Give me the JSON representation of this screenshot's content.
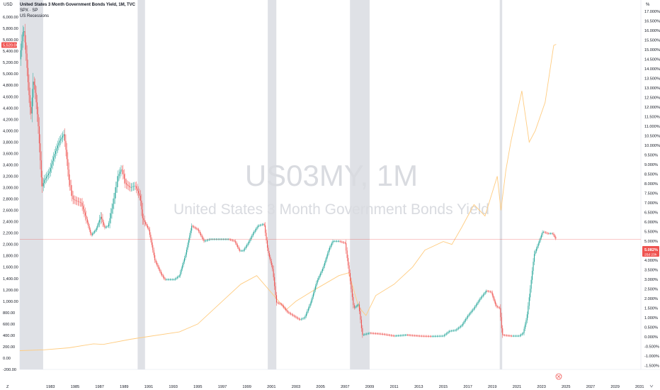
{
  "colors": {
    "up": "#26a69a",
    "down": "#ef5350",
    "spx": "#ffcc80",
    "recession": "#d1d4dc",
    "price_line": "#ef5350",
    "watermark": "#d9dbe0"
  },
  "legend": {
    "title": "United States 3 Month Government Bonds Yield, 1M, TVC",
    "spx": "SPX · SP",
    "recessions": "US Recessions"
  },
  "watermark": {
    "symbol": "US03MY, 1M",
    "name": "United States 3 Month Government Bonds Yield"
  },
  "left_axis_unit": "USD",
  "right_axis_unit": "%",
  "spx_last_label": "5,520.06",
  "yield_last_label": "5.082%",
  "yield_countdown": "25d 23h",
  "corner_label": "Z",
  "chart_data": {
    "type": "line",
    "x_range": [
      1981.0,
      2031.6
    ],
    "x_ticks": [
      "1983",
      "1985",
      "1987",
      "1989",
      "1991",
      "1993",
      "1995",
      "1997",
      "1999",
      "2001",
      "2003",
      "2005",
      "2007",
      "2009",
      "2011",
      "2013",
      "2015",
      "2017",
      "2019",
      "2021",
      "2023",
      "2025",
      "2027",
      "2029",
      "2031"
    ],
    "left_axis": {
      "unit": "USD",
      "range": [
        -200,
        6200
      ],
      "ticks": [
        "-200.00",
        "0.00",
        "200.00",
        "400.00",
        "600.00",
        "800.00",
        "1,000.00",
        "1,200.00",
        "1,400.00",
        "1,600.00",
        "1,800.00",
        "2,000.00",
        "2,200.00",
        "2,400.00",
        "2,600.00",
        "2,800.00",
        "3,000.00",
        "3,200.00",
        "3,400.00",
        "3,600.00",
        "3,800.00",
        "4,000.00",
        "4,200.00",
        "4,400.00",
        "4,600.00",
        "4,800.00",
        "5,000.00",
        "5,200.00",
        "5,400.00",
        "5,600.00",
        "5,800.00",
        "6,000.00"
      ]
    },
    "right_axis": {
      "unit": "%",
      "range": [
        -1.7,
        17.3
      ],
      "ticks": [
        "-1.500%",
        "-1.000%",
        "-0.500%",
        "0.000%",
        "0.500%",
        "1.000%",
        "1.500%",
        "2.000%",
        "2.500%",
        "3.000%",
        "3.500%",
        "4.000%",
        "4.500%",
        "5.000%",
        "5.500%",
        "6.000%",
        "6.500%",
        "7.000%",
        "7.500%",
        "8.000%",
        "8.500%",
        "9.000%",
        "9.500%",
        "10.000%",
        "10.500%",
        "11.000%",
        "11.500%",
        "12.000%",
        "12.500%",
        "13.000%",
        "13.500%",
        "14.000%",
        "14.500%",
        "15.000%",
        "15.500%",
        "16.000%",
        "16.500%",
        "17.000%"
      ]
    },
    "recessions": [
      [
        1981.0,
        1982.9
      ],
      [
        1990.6,
        1991.2
      ],
      [
        2001.2,
        2001.9
      ],
      [
        2007.9,
        2009.5
      ],
      [
        2020.1,
        2020.3
      ]
    ],
    "series": [
      {
        "name": "United States 3 Month Government Bonds Yield",
        "style": "candles",
        "values": [
          [
            1981.0,
            14.5
          ],
          [
            1981.3,
            16.2
          ],
          [
            1981.5,
            14.8
          ],
          [
            1981.7,
            13.0
          ],
          [
            1981.9,
            11.5
          ],
          [
            1982.1,
            13.5
          ],
          [
            1982.3,
            12.5
          ],
          [
            1982.5,
            11.0
          ],
          [
            1982.8,
            7.8
          ],
          [
            1983.0,
            8.2
          ],
          [
            1983.4,
            8.6
          ],
          [
            1983.8,
            9.5
          ],
          [
            1984.2,
            10.2
          ],
          [
            1984.6,
            10.6
          ],
          [
            1984.8,
            9.5
          ],
          [
            1985.0,
            8.2
          ],
          [
            1985.3,
            7.2
          ],
          [
            1985.6,
            7.1
          ],
          [
            1986.0,
            7.0
          ],
          [
            1986.4,
            6.2
          ],
          [
            1986.8,
            5.3
          ],
          [
            1987.2,
            5.6
          ],
          [
            1987.6,
            6.3
          ],
          [
            1987.9,
            5.7
          ],
          [
            1988.2,
            5.8
          ],
          [
            1988.6,
            7.0
          ],
          [
            1989.0,
            8.4
          ],
          [
            1989.3,
            8.8
          ],
          [
            1989.6,
            8.0
          ],
          [
            1990.0,
            7.8
          ],
          [
            1990.4,
            7.9
          ],
          [
            1990.8,
            7.3
          ],
          [
            1991.0,
            6.2
          ],
          [
            1991.5,
            5.6
          ],
          [
            1992.0,
            4.0
          ],
          [
            1992.5,
            3.3
          ],
          [
            1992.8,
            3.0
          ],
          [
            1993.2,
            3.0
          ],
          [
            1993.6,
            3.0
          ],
          [
            1994.0,
            3.2
          ],
          [
            1994.5,
            4.3
          ],
          [
            1995.0,
            5.8
          ],
          [
            1995.5,
            5.6
          ],
          [
            1996.0,
            5.0
          ],
          [
            1996.5,
            5.1
          ],
          [
            1997.0,
            5.1
          ],
          [
            1997.5,
            5.1
          ],
          [
            1998.0,
            5.1
          ],
          [
            1998.5,
            5.0
          ],
          [
            1998.9,
            4.5
          ],
          [
            1999.2,
            4.5
          ],
          [
            1999.6,
            4.9
          ],
          [
            2000.0,
            5.4
          ],
          [
            2000.4,
            5.8
          ],
          [
            2000.9,
            5.9
          ],
          [
            2001.2,
            4.5
          ],
          [
            2001.6,
            3.5
          ],
          [
            2001.9,
            1.8
          ],
          [
            2002.3,
            1.7
          ],
          [
            2002.8,
            1.3
          ],
          [
            2003.3,
            1.1
          ],
          [
            2003.8,
            0.9
          ],
          [
            2004.2,
            1.0
          ],
          [
            2004.7,
            1.8
          ],
          [
            2005.2,
            2.9
          ],
          [
            2005.7,
            3.6
          ],
          [
            2006.2,
            4.6
          ],
          [
            2006.5,
            5.0
          ],
          [
            2007.0,
            5.0
          ],
          [
            2007.5,
            4.9
          ],
          [
            2007.8,
            3.5
          ],
          [
            2008.2,
            1.5
          ],
          [
            2008.6,
            1.7
          ],
          [
            2008.9,
            0.1
          ],
          [
            2009.5,
            0.2
          ],
          [
            2010.5,
            0.15
          ],
          [
            2011.5,
            0.05
          ],
          [
            2012.5,
            0.1
          ],
          [
            2013.5,
            0.05
          ],
          [
            2014.5,
            0.03
          ],
          [
            2015.5,
            0.05
          ],
          [
            2016.0,
            0.3
          ],
          [
            2016.5,
            0.35
          ],
          [
            2017.0,
            0.6
          ],
          [
            2017.5,
            1.1
          ],
          [
            2018.0,
            1.5
          ],
          [
            2018.5,
            2.0
          ],
          [
            2019.0,
            2.4
          ],
          [
            2019.4,
            2.35
          ],
          [
            2019.8,
            1.6
          ],
          [
            2020.1,
            1.5
          ],
          [
            2020.3,
            0.1
          ],
          [
            2021.0,
            0.05
          ],
          [
            2021.7,
            0.05
          ],
          [
            2022.0,
            0.2
          ],
          [
            2022.3,
            1.0
          ],
          [
            2022.6,
            2.6
          ],
          [
            2022.9,
            4.3
          ],
          [
            2023.2,
            4.8
          ],
          [
            2023.6,
            5.5
          ],
          [
            2024.0,
            5.4
          ],
          [
            2024.4,
            5.4
          ],
          [
            2024.7,
            5.1
          ]
        ]
      },
      {
        "name": "SPX",
        "style": "line",
        "values": [
          [
            1981.0,
            130
          ],
          [
            1983.0,
            145
          ],
          [
            1985.0,
            180
          ],
          [
            1987.0,
            250
          ],
          [
            1987.8,
            240
          ],
          [
            1990.0,
            330
          ],
          [
            1991.5,
            380
          ],
          [
            1994.0,
            460
          ],
          [
            1995.5,
            600
          ],
          [
            1997.0,
            900
          ],
          [
            1998.0,
            1100
          ],
          [
            1999.0,
            1300
          ],
          [
            2000.3,
            1450
          ],
          [
            2001.5,
            1150
          ],
          [
            2002.7,
            850
          ],
          [
            2003.5,
            1000
          ],
          [
            2005.0,
            1200
          ],
          [
            2007.0,
            1450
          ],
          [
            2007.8,
            1500
          ],
          [
            2008.6,
            900
          ],
          [
            2009.2,
            750
          ],
          [
            2010.0,
            1100
          ],
          [
            2011.5,
            1300
          ],
          [
            2013.0,
            1600
          ],
          [
            2014.0,
            1900
          ],
          [
            2015.5,
            2050
          ],
          [
            2016.2,
            2000
          ],
          [
            2017.0,
            2300
          ],
          [
            2018.0,
            2700
          ],
          [
            2018.9,
            2500
          ],
          [
            2019.9,
            3200
          ],
          [
            2020.2,
            2600
          ],
          [
            2020.6,
            3300
          ],
          [
            2021.0,
            3800
          ],
          [
            2021.9,
            4700
          ],
          [
            2022.5,
            3800
          ],
          [
            2023.0,
            4000
          ],
          [
            2023.8,
            4500
          ],
          [
            2024.5,
            5500
          ],
          [
            2024.7,
            5520
          ]
        ]
      }
    ]
  }
}
